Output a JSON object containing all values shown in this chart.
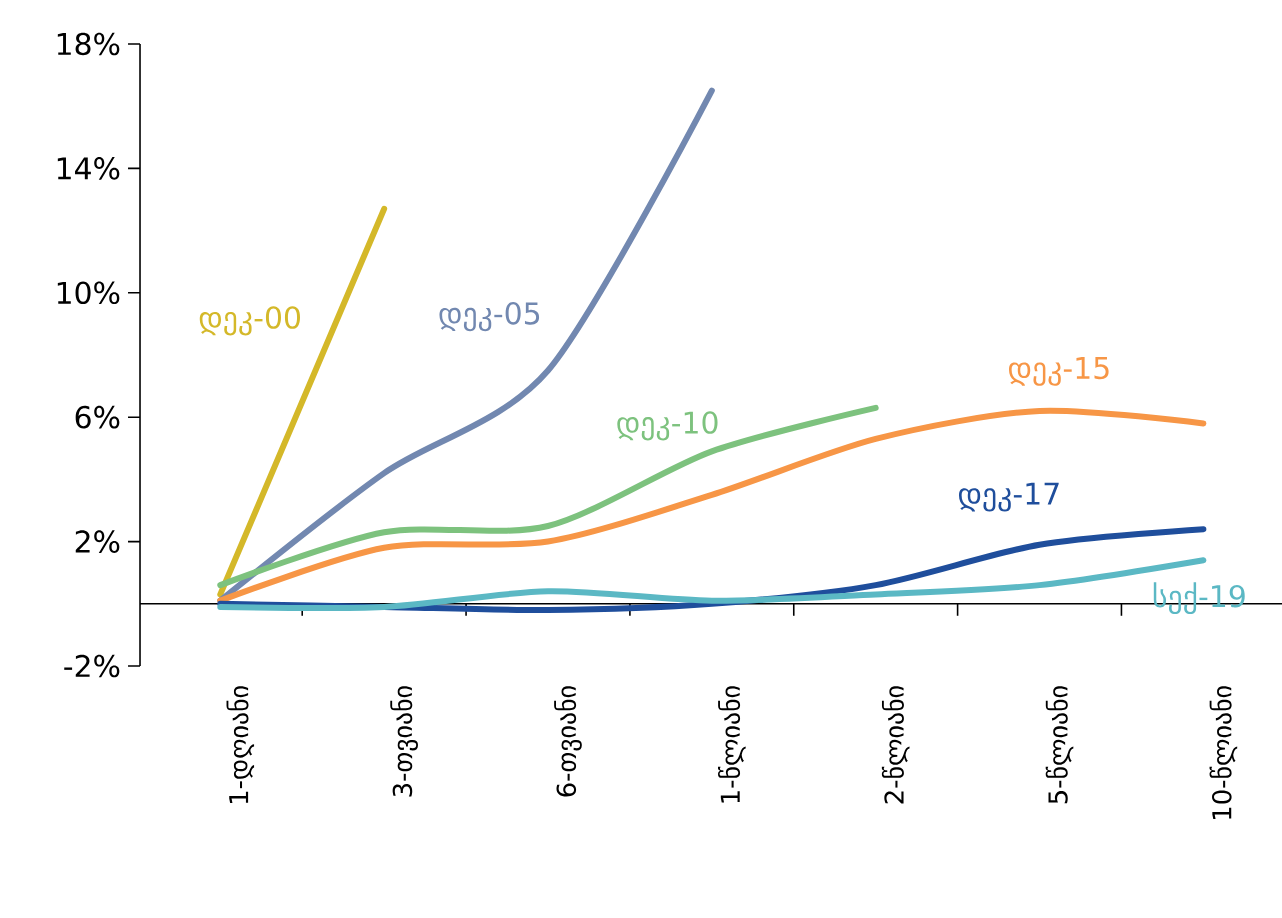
{
  "chart_data": {
    "type": "line",
    "categories": [
      "1-დღიანი",
      "3-თვიანი",
      "6-თვიანი",
      "1-წლიანი",
      "2-წლიანი",
      "5-წლიანი",
      "10-წლიანი"
    ],
    "series": [
      {
        "name": "დეკ-00",
        "color": "#d4b829",
        "values": [
          0.3,
          12.7,
          null,
          null,
          null,
          null,
          null
        ]
      },
      {
        "name": "დეკ-05",
        "color": "#7288b0",
        "values": [
          0.1,
          4.2,
          7.5,
          16.5,
          null,
          null,
          null
        ]
      },
      {
        "name": "დეკ-10",
        "color": "#7dc27e",
        "values": [
          0.6,
          2.3,
          2.5,
          4.9,
          6.3,
          null,
          null
        ]
      },
      {
        "name": "დეკ-15",
        "color": "#f79646",
        "values": [
          0.1,
          1.8,
          2.0,
          3.5,
          5.3,
          6.2,
          5.8
        ]
      },
      {
        "name": "დეკ-17",
        "color": "#1f4e9c",
        "values": [
          0.0,
          -0.1,
          -0.2,
          0.0,
          0.6,
          1.9,
          2.4
        ]
      },
      {
        "name": "სექ-19",
        "color": "#5bb8c4",
        "values": [
          -0.1,
          -0.1,
          0.4,
          0.1,
          0.3,
          0.6,
          1.4
        ]
      }
    ],
    "ylim": [
      -2,
      18
    ],
    "yticks": [
      {
        "value": -2,
        "label": "-2%"
      },
      {
        "value": 2,
        "label": "2%"
      },
      {
        "value": 6,
        "label": "6%"
      },
      {
        "value": 10,
        "label": "10%"
      },
      {
        "value": 14,
        "label": "14%"
      },
      {
        "value": 18,
        "label": "18%"
      }
    ],
    "marker": "none",
    "line_style": "solid",
    "grid": false,
    "legend": false
  }
}
